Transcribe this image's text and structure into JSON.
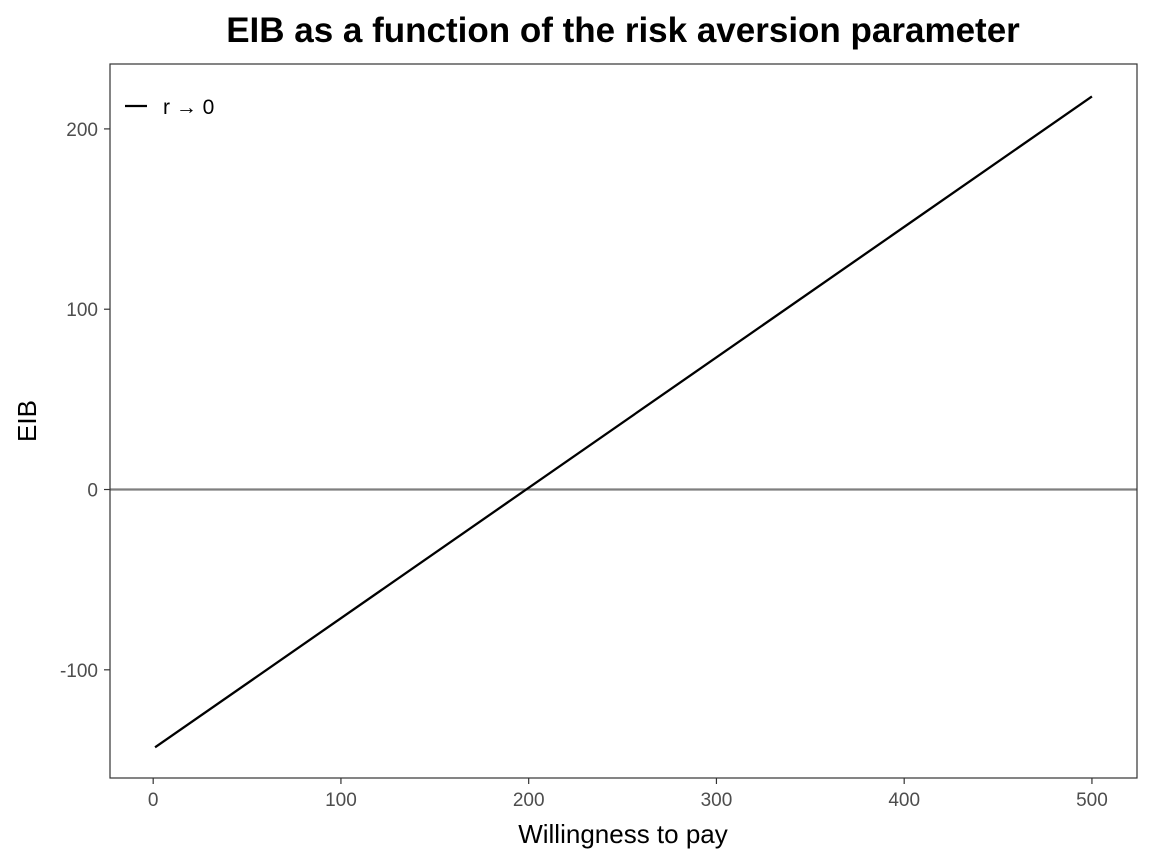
{
  "chart_data": {
    "type": "line",
    "title": "EIB as a function of the risk aversion parameter",
    "xlabel": "Willingness to pay",
    "ylabel": "EIB",
    "xlim": [
      -23,
      524
    ],
    "ylim": [
      -160,
      236
    ],
    "x_ticks": [
      0,
      100,
      200,
      300,
      400,
      500
    ],
    "x_tick_labels": [
      "0",
      "100",
      "200",
      "300",
      "400",
      "500"
    ],
    "y_ticks": [
      -100,
      0,
      100,
      200
    ],
    "y_tick_labels": [
      "-100",
      "0",
      "100",
      "200"
    ],
    "grid": false,
    "legend_position": "top-left",
    "reference_lines": [
      {
        "axis": "y",
        "value": 0,
        "color": "#7f7f7f"
      }
    ],
    "series": [
      {
        "name": "r → 0",
        "color": "#000000",
        "x": [
          1,
          500
        ],
        "y": [
          -143,
          218
        ]
      }
    ]
  }
}
